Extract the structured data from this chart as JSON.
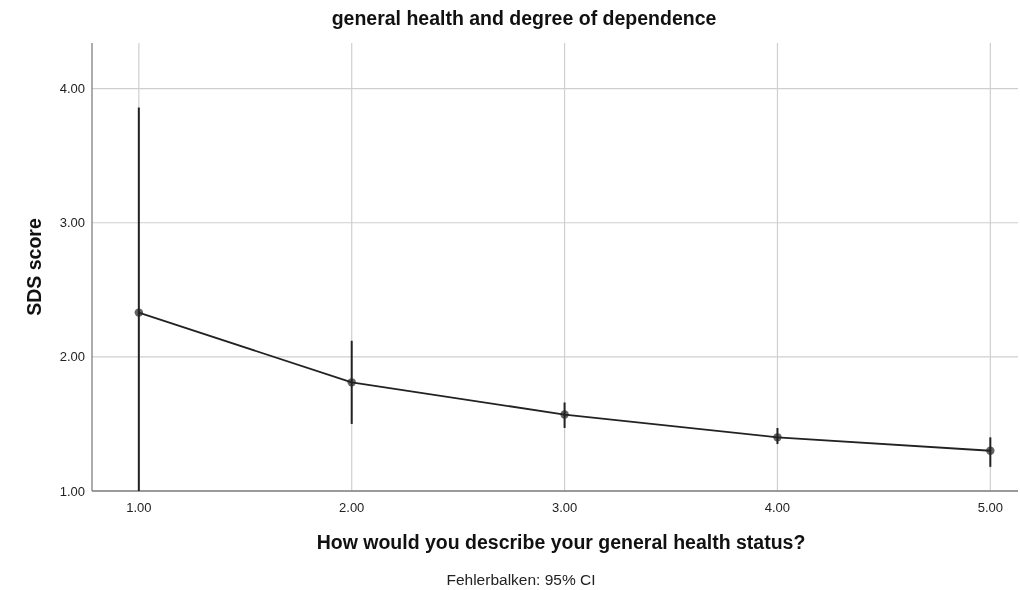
{
  "chart_data": {
    "type": "line",
    "title": "general health and degree of dependence",
    "xlabel": "How would you describe your general health status?",
    "ylabel": "SDS score",
    "annotations": [
      "Fehlerbalken: 95% CI"
    ],
    "x": [
      1,
      2,
      3,
      4,
      5
    ],
    "series": [
      {
        "color": "#222222",
        "values": [
          2.33,
          1.81,
          1.57,
          1.4,
          1.3
        ],
        "errors": [
          [
            1.0,
            3.86
          ],
          [
            1.5,
            2.12
          ],
          [
            1.47,
            1.66
          ],
          [
            1.35,
            1.47
          ],
          [
            1.18,
            1.4
          ]
        ]
      }
    ],
    "xlim": [
      0.78,
      5.13
    ],
    "ylim": [
      1,
      4.34
    ],
    "xticks": [
      {
        "value": 1,
        "label": "1.00"
      },
      {
        "value": 2,
        "label": "2.00"
      },
      {
        "value": 3,
        "label": "3.00"
      },
      {
        "value": 4,
        "label": "4.00"
      },
      {
        "value": 5,
        "label": "5.00"
      }
    ],
    "yticks": [
      {
        "value": 1,
        "label": "1.00"
      },
      {
        "value": 2,
        "label": "2.00"
      },
      {
        "value": 3,
        "label": "3.00"
      },
      {
        "value": 4,
        "label": "4.00"
      }
    ],
    "grid": true,
    "marker": "circle",
    "line_style": "solid"
  }
}
